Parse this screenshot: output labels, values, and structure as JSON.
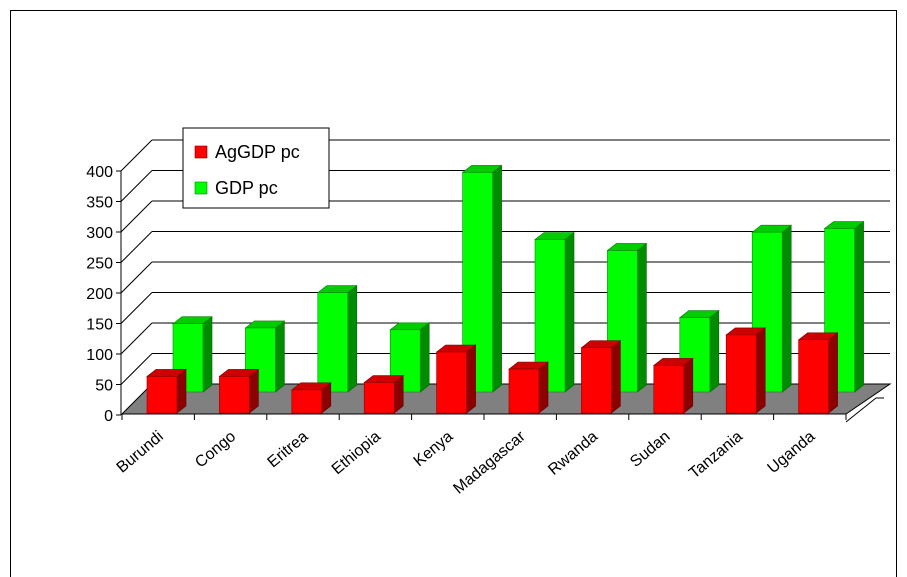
{
  "chart_data": {
    "type": "bar",
    "style": "3d-clustered-columns",
    "categories": [
      "Burundi",
      "Congo",
      "Eritrea",
      "Ethiopia",
      "Kenya",
      "Madagascar",
      "Rwanda",
      "Sudan",
      "Tanzania",
      "Uganda"
    ],
    "series": [
      {
        "name": "AgGDP pc",
        "color": "#ff0000",
        "values": [
          60,
          60,
          38,
          50,
          100,
          72,
          107,
          78,
          128,
          120
        ]
      },
      {
        "name": "GDP pc",
        "color": "#00ff00",
        "values": [
          112,
          105,
          163,
          102,
          360,
          250,
          232,
          122,
          262,
          268
        ]
      }
    ],
    "yticks": [
      0,
      50,
      100,
      150,
      200,
      250,
      300,
      350,
      400
    ],
    "ylim": [
      0,
      400
    ],
    "grid": true,
    "legend": "upper-left",
    "floor_color": "#808080"
  }
}
